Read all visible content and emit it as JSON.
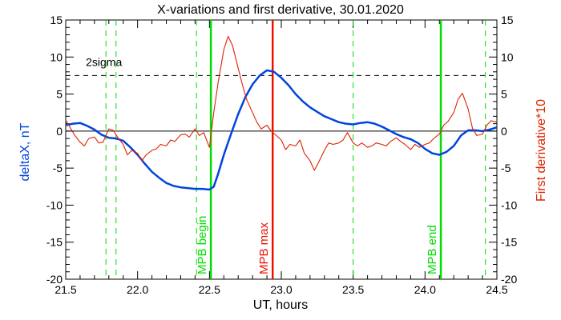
{
  "chart_data": {
    "type": "line",
    "title": "X-variations and first derivative, 30.01.2020",
    "xlabel": "UT, hours",
    "ylabel_left": "deltaX, nT",
    "ylabel_right": "First derivative*10",
    "xlim": [
      21.5,
      24.5
    ],
    "ylim": [
      -20,
      15
    ],
    "xticks": [
      "21.5",
      "22.0",
      "22.5",
      "23.0",
      "23.5",
      "24.0",
      "24.5"
    ],
    "yticks_left": [
      "15",
      "10",
      "5",
      "0",
      "-5",
      "-10",
      "-15",
      "-20"
    ],
    "yticks_right": [
      "15",
      "10",
      "5",
      "0",
      "-5",
      "-10",
      "-15",
      "-20"
    ],
    "grid": false,
    "threshold": {
      "label": "2sigma",
      "value": 7.5
    },
    "series": [
      {
        "name": "deltaX, nT",
        "color": "#0044dd",
        "x": [
          21.5,
          21.55,
          21.6,
          21.65,
          21.7,
          21.75,
          21.8,
          21.85,
          21.9,
          21.95,
          22.0,
          22.05,
          22.1,
          22.15,
          22.2,
          22.25,
          22.3,
          22.35,
          22.4,
          22.45,
          22.5,
          22.53,
          22.56,
          22.6,
          22.65,
          22.7,
          22.75,
          22.8,
          22.85,
          22.9,
          22.95,
          23.0,
          23.05,
          23.1,
          23.15,
          23.2,
          23.25,
          23.3,
          23.35,
          23.4,
          23.45,
          23.5,
          23.55,
          23.6,
          23.65,
          23.7,
          23.75,
          23.8,
          23.85,
          23.9,
          23.95,
          24.0,
          24.05,
          24.1,
          24.15,
          24.2,
          24.25,
          24.3,
          24.35,
          24.4,
          24.45,
          24.5
        ],
        "y": [
          0.8,
          1.0,
          1.1,
          0.7,
          0.2,
          -0.5,
          -0.9,
          -1.0,
          -1.3,
          -2.2,
          -3.2,
          -4.4,
          -5.5,
          -6.3,
          -7.0,
          -7.4,
          -7.6,
          -7.7,
          -7.8,
          -7.8,
          -7.9,
          -7.5,
          -5.8,
          -3.2,
          -0.4,
          2.3,
          4.6,
          6.3,
          7.5,
          8.2,
          8.0,
          7.2,
          6.2,
          5.0,
          4.0,
          3.2,
          2.6,
          2.0,
          1.6,
          1.2,
          1.0,
          0.9,
          1.1,
          1.2,
          1.0,
          0.6,
          0.1,
          -0.4,
          -0.8,
          -1.1,
          -1.6,
          -2.4,
          -3.0,
          -3.2,
          -2.8,
          -2.0,
          -0.6,
          0.1,
          0.1,
          0.0,
          0.2,
          0.5
        ]
      },
      {
        "name": "First derivative*10",
        "color": "#dd2200",
        "x": [
          21.5,
          21.53,
          21.56,
          21.6,
          21.63,
          21.66,
          21.7,
          21.73,
          21.76,
          21.8,
          21.83,
          21.86,
          21.9,
          21.93,
          21.96,
          22.0,
          22.03,
          22.06,
          22.1,
          22.13,
          22.16,
          22.2,
          22.23,
          22.26,
          22.3,
          22.33,
          22.36,
          22.4,
          22.43,
          22.46,
          22.5,
          22.53,
          22.56,
          22.6,
          22.63,
          22.66,
          22.7,
          22.73,
          22.76,
          22.8,
          22.83,
          22.86,
          22.9,
          22.93,
          22.96,
          23.0,
          23.03,
          23.06,
          23.1,
          23.13,
          23.16,
          23.2,
          23.23,
          23.26,
          23.3,
          23.33,
          23.36,
          23.4,
          23.43,
          23.46,
          23.5,
          23.53,
          23.56,
          23.6,
          23.63,
          23.66,
          23.7,
          23.73,
          23.76,
          23.8,
          23.83,
          23.86,
          23.9,
          23.93,
          23.96,
          24.0,
          24.03,
          24.06,
          24.1,
          24.13,
          24.16,
          24.2,
          24.23,
          24.26,
          24.3,
          24.33,
          24.36,
          24.4,
          24.43,
          24.46,
          24.5
        ],
        "y": [
          1.5,
          0.5,
          -0.5,
          -1.5,
          -2.0,
          -1.0,
          -0.8,
          -1.6,
          -1.5,
          0.3,
          0.1,
          -0.8,
          -1.8,
          -3.2,
          -2.6,
          -3.0,
          -4.0,
          -3.2,
          -2.6,
          -2.4,
          -1.8,
          -2.0,
          -1.2,
          -1.4,
          -0.5,
          -0.4,
          -0.8,
          0.3,
          -0.6,
          -0.2,
          -2.2,
          2.5,
          6.5,
          11.0,
          12.8,
          11.6,
          8.5,
          6.2,
          4.2,
          2.5,
          1.2,
          0.3,
          0.8,
          0.0,
          -0.5,
          -1.2,
          -2.5,
          -1.8,
          -2.0,
          -1.2,
          -3.0,
          -4.0,
          -5.3,
          -4.2,
          -2.6,
          -1.6,
          -1.8,
          -1.6,
          -1.2,
          -0.2,
          -1.6,
          -2.0,
          -1.6,
          -2.2,
          -2.0,
          -1.6,
          -1.8,
          -2.0,
          -1.4,
          -0.9,
          -1.4,
          -1.8,
          -2.5,
          -1.8,
          -2.2,
          -1.8,
          -1.6,
          -1.0,
          -0.4,
          0.8,
          1.3,
          2.5,
          4.3,
          5.1,
          3.0,
          0.4,
          -0.6,
          -0.4,
          0.8,
          1.4,
          1.2
        ]
      }
    ],
    "vertical_markers": [
      {
        "x": 21.78,
        "style": "dashed",
        "color": "#00dd00"
      },
      {
        "x": 21.85,
        "style": "dashed",
        "color": "#00dd00"
      },
      {
        "x": 22.41,
        "style": "dashed",
        "color": "#00dd00"
      },
      {
        "x": 22.51,
        "style": "solid",
        "color": "#00dd00",
        "label": "MPB begin"
      },
      {
        "x": 22.94,
        "style": "solid",
        "color": "#ee1100",
        "label": "MPB max"
      },
      {
        "x": 23.5,
        "style": "dashed",
        "color": "#00dd00"
      },
      {
        "x": 24.11,
        "style": "solid",
        "color": "#00dd00",
        "label": "MPB end"
      },
      {
        "x": 24.42,
        "style": "dashed",
        "color": "#00dd00"
      }
    ]
  }
}
